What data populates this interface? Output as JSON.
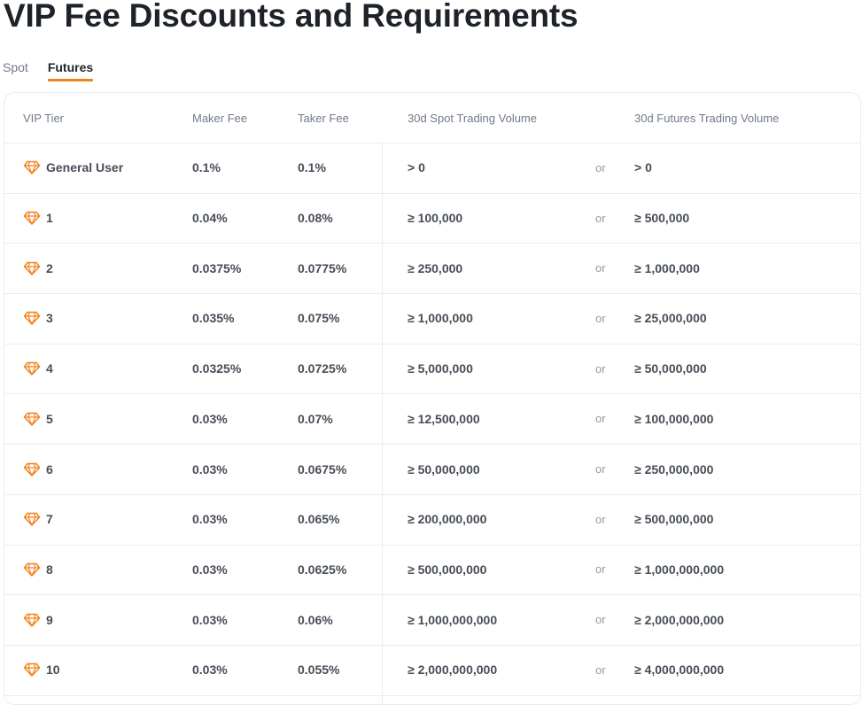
{
  "page": {
    "title": "VIP Fee Discounts and Requirements"
  },
  "tabs": [
    {
      "label": "Spot",
      "active": false
    },
    {
      "label": "Futures",
      "active": true
    }
  ],
  "colors": {
    "accent": "#f0831c",
    "text_primary": "#1e2329",
    "text_secondary": "#707a8a",
    "border": "#eaecef"
  },
  "table": {
    "headers": {
      "tier": "VIP Tier",
      "maker": "Maker Fee",
      "taker": "Taker Fee",
      "spot_volume": "30d Spot Trading Volume",
      "futures_volume": "30d Futures Trading Volume"
    },
    "tier_icon": "diamond-icon",
    "rows": [
      {
        "tier": "General User",
        "maker": "0.1%",
        "taker": "0.1%",
        "spot": "> 0",
        "or": "or",
        "futures": "> 0"
      },
      {
        "tier": "1",
        "maker": "0.04%",
        "taker": "0.08%",
        "spot": "≥ 100,000",
        "or": "or",
        "futures": "≥ 500,000"
      },
      {
        "tier": "2",
        "maker": "0.0375%",
        "taker": "0.0775%",
        "spot": "≥ 250,000",
        "or": "or",
        "futures": "≥ 1,000,000"
      },
      {
        "tier": "3",
        "maker": "0.035%",
        "taker": "0.075%",
        "spot": "≥ 1,000,000",
        "or": "or",
        "futures": "≥ 25,000,000"
      },
      {
        "tier": "4",
        "maker": "0.0325%",
        "taker": "0.0725%",
        "spot": "≥ 5,000,000",
        "or": "or",
        "futures": "≥ 50,000,000"
      },
      {
        "tier": "5",
        "maker": "0.03%",
        "taker": "0.07%",
        "spot": "≥ 12,500,000",
        "or": "or",
        "futures": "≥ 100,000,000"
      },
      {
        "tier": "6",
        "maker": "0.03%",
        "taker": "0.0675%",
        "spot": "≥ 50,000,000",
        "or": "or",
        "futures": "≥ 250,000,000"
      },
      {
        "tier": "7",
        "maker": "0.03%",
        "taker": "0.065%",
        "spot": "≥ 200,000,000",
        "or": "or",
        "futures": "≥ 500,000,000"
      },
      {
        "tier": "8",
        "maker": "0.03%",
        "taker": "0.0625%",
        "spot": "≥ 500,000,000",
        "or": "or",
        "futures": "≥ 1,000,000,000"
      },
      {
        "tier": "9",
        "maker": "0.03%",
        "taker": "0.06%",
        "spot": "≥ 1,000,000,000",
        "or": "or",
        "futures": "≥ 2,000,000,000"
      },
      {
        "tier": "10",
        "maker": "0.03%",
        "taker": "0.055%",
        "spot": "≥ 2,000,000,000",
        "or": "or",
        "futures": "≥ 4,000,000,000"
      }
    ]
  }
}
